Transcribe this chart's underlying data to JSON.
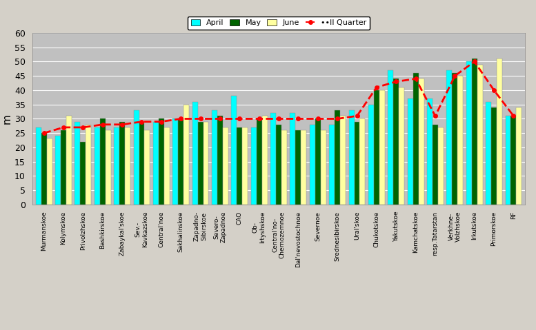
{
  "categories": [
    "Murmanskoe",
    "Kolymskoe",
    "Privolzhskoe",
    "Bashkirskoe",
    "Zabaykal'skoe",
    "Sev.-\nKavkazskoe",
    "Central'noe",
    "Sakhalinskoe",
    "Zapadno-\nSibirskoe",
    "Severo-\nZapadnoe",
    "CAO",
    "Ob-\nIrtyshskoe",
    "Central'no-\nChernozemnoe",
    "Dal'nevostochnoe",
    "Severnoe",
    "Srednesibirskoe",
    "Ural'skoe",
    "Chukotskoe",
    "Yakutskoe",
    "Kamchatskoe",
    "resp.Tatarstan",
    "Verkhnе-\nVolzhskoe",
    "Irkutskoe",
    "Primorskoe",
    "RF"
  ],
  "april": [
    27,
    24,
    29,
    27,
    27,
    33,
    29,
    30,
    36,
    33,
    38,
    27,
    32,
    32,
    28,
    28,
    33,
    35,
    47,
    37,
    37,
    47,
    50,
    36,
    31
  ],
  "may": [
    25,
    26,
    22,
    30,
    29,
    29,
    30,
    30,
    29,
    31,
    27,
    30,
    28,
    26,
    30,
    33,
    29,
    40,
    44,
    46,
    28,
    46,
    51,
    34,
    31
  ],
  "june": [
    23,
    31,
    28,
    26,
    27,
    26,
    27,
    35,
    29,
    27,
    27,
    31,
    26,
    26,
    26,
    31,
    30,
    40,
    41,
    44,
    27,
    45,
    49,
    51,
    34
  ],
  "quarter": [
    25,
    27,
    27,
    28,
    28,
    29,
    29,
    30,
    30,
    30,
    30,
    30,
    30,
    30,
    30,
    30,
    31,
    41,
    43,
    44,
    31,
    45,
    50,
    40,
    31
  ],
  "bar_colors": {
    "april": "#00FFFF",
    "may": "#006400",
    "june": "#FFFFA0"
  },
  "line_color": "#FF0000",
  "plot_bg_color": "#C0C0C0",
  "fig_bg_color": "#D4D0C8",
  "ylabel": "m",
  "ylim": [
    0,
    60
  ],
  "yticks": [
    0,
    5,
    10,
    15,
    20,
    25,
    30,
    35,
    40,
    45,
    50,
    55,
    60
  ],
  "legend_labels": [
    "April",
    "May",
    "June",
    "••II Quarter"
  ]
}
